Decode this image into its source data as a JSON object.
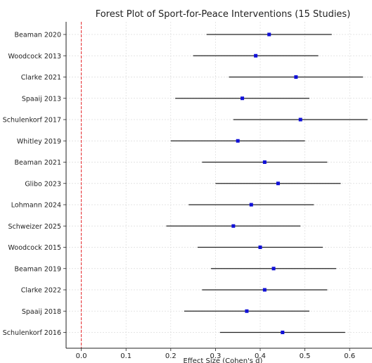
{
  "chart_data": {
    "type": "forest",
    "title": "Forest Plot of Sport-for-Peace Interventions (15 Studies)",
    "xlabel": "Effect Size (Cohen's d)",
    "ylabel": "",
    "xlim": [
      -0.034,
      0.65
    ],
    "xticks": [
      0.0,
      0.1,
      0.2,
      0.3,
      0.4,
      0.5,
      0.6
    ],
    "xtick_labels": [
      "0.0",
      "0.1",
      "0.2",
      "0.3",
      "0.4",
      "0.5",
      "0.6"
    ],
    "grid": true,
    "reference_line": {
      "x": 0,
      "style": "dashed",
      "color": "#e8262a"
    },
    "marker_color": "#1010d8",
    "ci_color": "#222222",
    "studies": [
      {
        "name": "Beaman 2020",
        "effect": 0.42,
        "lower": 0.28,
        "upper": 0.56
      },
      {
        "name": "Woodcock 2013",
        "effect": 0.39,
        "lower": 0.25,
        "upper": 0.53
      },
      {
        "name": "Clarke 2021",
        "effect": 0.48,
        "lower": 0.33,
        "upper": 0.63
      },
      {
        "name": "Spaaij 2013",
        "effect": 0.36,
        "lower": 0.21,
        "upper": 0.51
      },
      {
        "name": "Schulenkorf 2017",
        "effect": 0.49,
        "lower": 0.34,
        "upper": 0.64
      },
      {
        "name": "Whitley 2019",
        "effect": 0.35,
        "lower": 0.2,
        "upper": 0.5
      },
      {
        "name": "Beaman 2021",
        "effect": 0.41,
        "lower": 0.27,
        "upper": 0.55
      },
      {
        "name": "Glibo 2023",
        "effect": 0.44,
        "lower": 0.3,
        "upper": 0.58
      },
      {
        "name": "Lohmann 2024",
        "effect": 0.38,
        "lower": 0.24,
        "upper": 0.52
      },
      {
        "name": "Schweizer 2025",
        "effect": 0.34,
        "lower": 0.19,
        "upper": 0.49
      },
      {
        "name": "Woodcock 2015",
        "effect": 0.4,
        "lower": 0.26,
        "upper": 0.54
      },
      {
        "name": "Beaman 2019",
        "effect": 0.43,
        "lower": 0.29,
        "upper": 0.57
      },
      {
        "name": "Clarke 2022",
        "effect": 0.41,
        "lower": 0.27,
        "upper": 0.55
      },
      {
        "name": "Spaaij 2018",
        "effect": 0.37,
        "lower": 0.23,
        "upper": 0.51
      },
      {
        "name": "Schulenkorf 2016",
        "effect": 0.45,
        "lower": 0.31,
        "upper": 0.59
      }
    ]
  }
}
